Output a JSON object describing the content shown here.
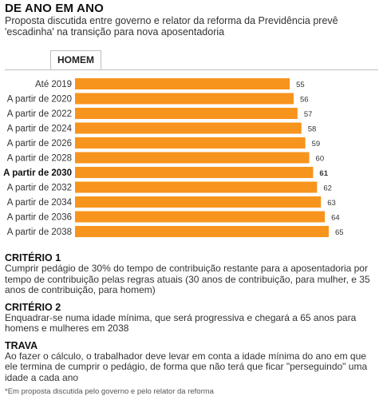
{
  "header": {
    "title": "DE ANO EM ANO",
    "subtitle": "Proposta discutida entre governo e relator da reforma da Previdência prevê 'escadinha' na transição para nova aposentadoria"
  },
  "tabs": [
    {
      "label": "HOMEM",
      "active": true
    }
  ],
  "colors": {
    "bar": "#f7941d",
    "text": "#333333",
    "tab_border": "#bdbdbd"
  },
  "chart_data": {
    "type": "bar",
    "orientation": "horizontal",
    "categories": [
      "Até 2019",
      "A partir de 2020",
      "A partir de 2022",
      "A partir de 2024",
      "A partir de 2026",
      "A partir de 2028",
      "A partir de 2030",
      "A partir de 2032",
      "A partir de 2034",
      "A partir de 2036",
      "A partir de 2038"
    ],
    "values": [
      55,
      56,
      57,
      58,
      59,
      60,
      61,
      62,
      63,
      64,
      65
    ],
    "highlight": "A partir de 2030",
    "xlim": [
      0,
      65
    ],
    "grid": false,
    "legend": "none"
  },
  "sections": [
    {
      "heading": "CRITÉRIO 1",
      "text": "Cumprir pedágio de 30% do tempo de contribuição restante para a aposentadoria por tempo de contribuição pelas regras atuais (30 anos de contribuição, para mulher, e 35 anos de contribuição, para homem)"
    },
    {
      "heading": "CRITÉRIO 2",
      "text": "Enquadrar-se numa idade mínima, que será progressiva e chegará a 65 anos para homens e mulheres em 2038"
    },
    {
      "heading": "TRAVA",
      "text": "Ao fazer o cálculo, o trabalhador deve levar em conta a idade mínima do ano em que ele termina de cumprir o pedágio, de forma que não terá que ficar \"perseguindo\" uma idade a cada ano"
    }
  ],
  "footnote": "*Em proposta discutida pelo governo e pelo relator da reforma"
}
